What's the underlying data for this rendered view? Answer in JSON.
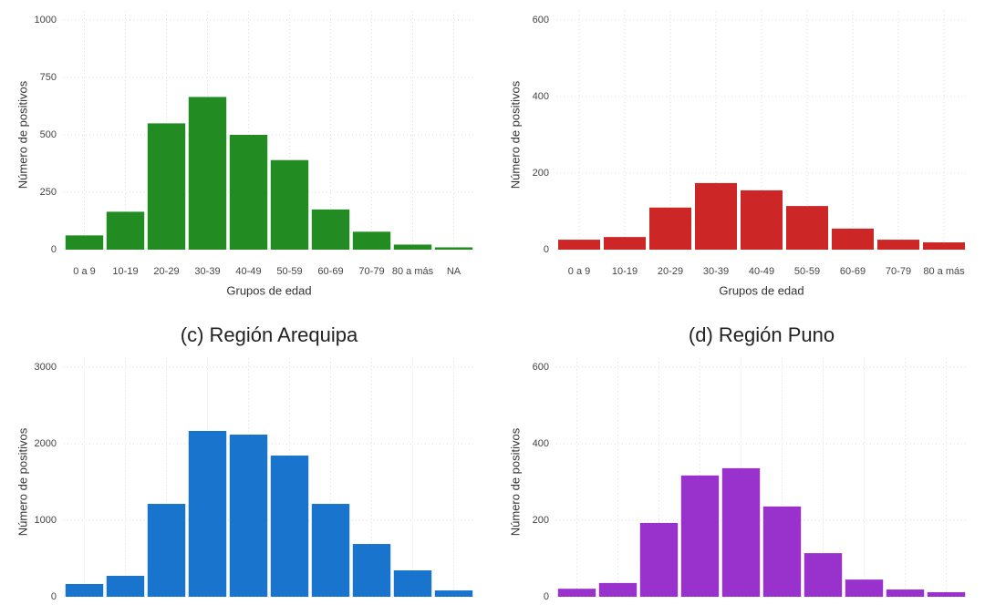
{
  "chart_data": [
    {
      "type": "bar",
      "y_label": "Número de positivos",
      "x_label": "Grupos de edad",
      "categories": [
        "0 a 9",
        "10-19",
        "20-29",
        "30-39",
        "40-49",
        "50-59",
        "60-69",
        "70-79",
        "80 a más",
        "NA"
      ],
      "values": [
        62,
        165,
        550,
        665,
        500,
        390,
        175,
        78,
        22,
        10
      ],
      "color": "#228b22",
      "ylim": [
        0,
        1000
      ],
      "yticks": [
        0,
        250,
        500,
        750,
        1000
      ],
      "grid": true
    },
    {
      "type": "bar",
      "y_label": "Número de positivos",
      "x_label": "Grupos de edad",
      "categories": [
        "0 a 9",
        "10-19",
        "20-29",
        "30-39",
        "40-49",
        "50-59",
        "60-69",
        "70-79",
        "80 a más"
      ],
      "values": [
        26,
        33,
        110,
        174,
        155,
        114,
        55,
        26,
        19
      ],
      "color": "#cd2626",
      "ylim": [
        0,
        600
      ],
      "yticks": [
        0,
        200,
        400,
        600
      ],
      "grid": true
    },
    {
      "type": "bar",
      "title": "(c) Región Arequipa",
      "y_label": "Número de positivos",
      "categories": [
        null,
        null,
        null,
        null,
        null,
        null,
        null,
        null,
        null,
        null
      ],
      "values": [
        167,
        274,
        1214,
        2167,
        2119,
        1845,
        1214,
        690,
        345,
        83
      ],
      "color": "#1874cd",
      "ylim": [
        0,
        3000
      ],
      "yticks": [
        0,
        1000,
        2000,
        3000
      ],
      "grid": true
    },
    {
      "type": "bar",
      "title": "(d) Región Puno",
      "y_label": "Número de positivos",
      "categories": [
        null,
        null,
        null,
        null,
        null,
        null,
        null,
        null,
        null,
        null
      ],
      "values": [
        21,
        36,
        193,
        317,
        336,
        236,
        114,
        45,
        19,
        12
      ],
      "color": "#9932cc",
      "ylim": [
        0,
        600
      ],
      "yticks": [
        0,
        200,
        400,
        600
      ],
      "grid": true
    }
  ]
}
